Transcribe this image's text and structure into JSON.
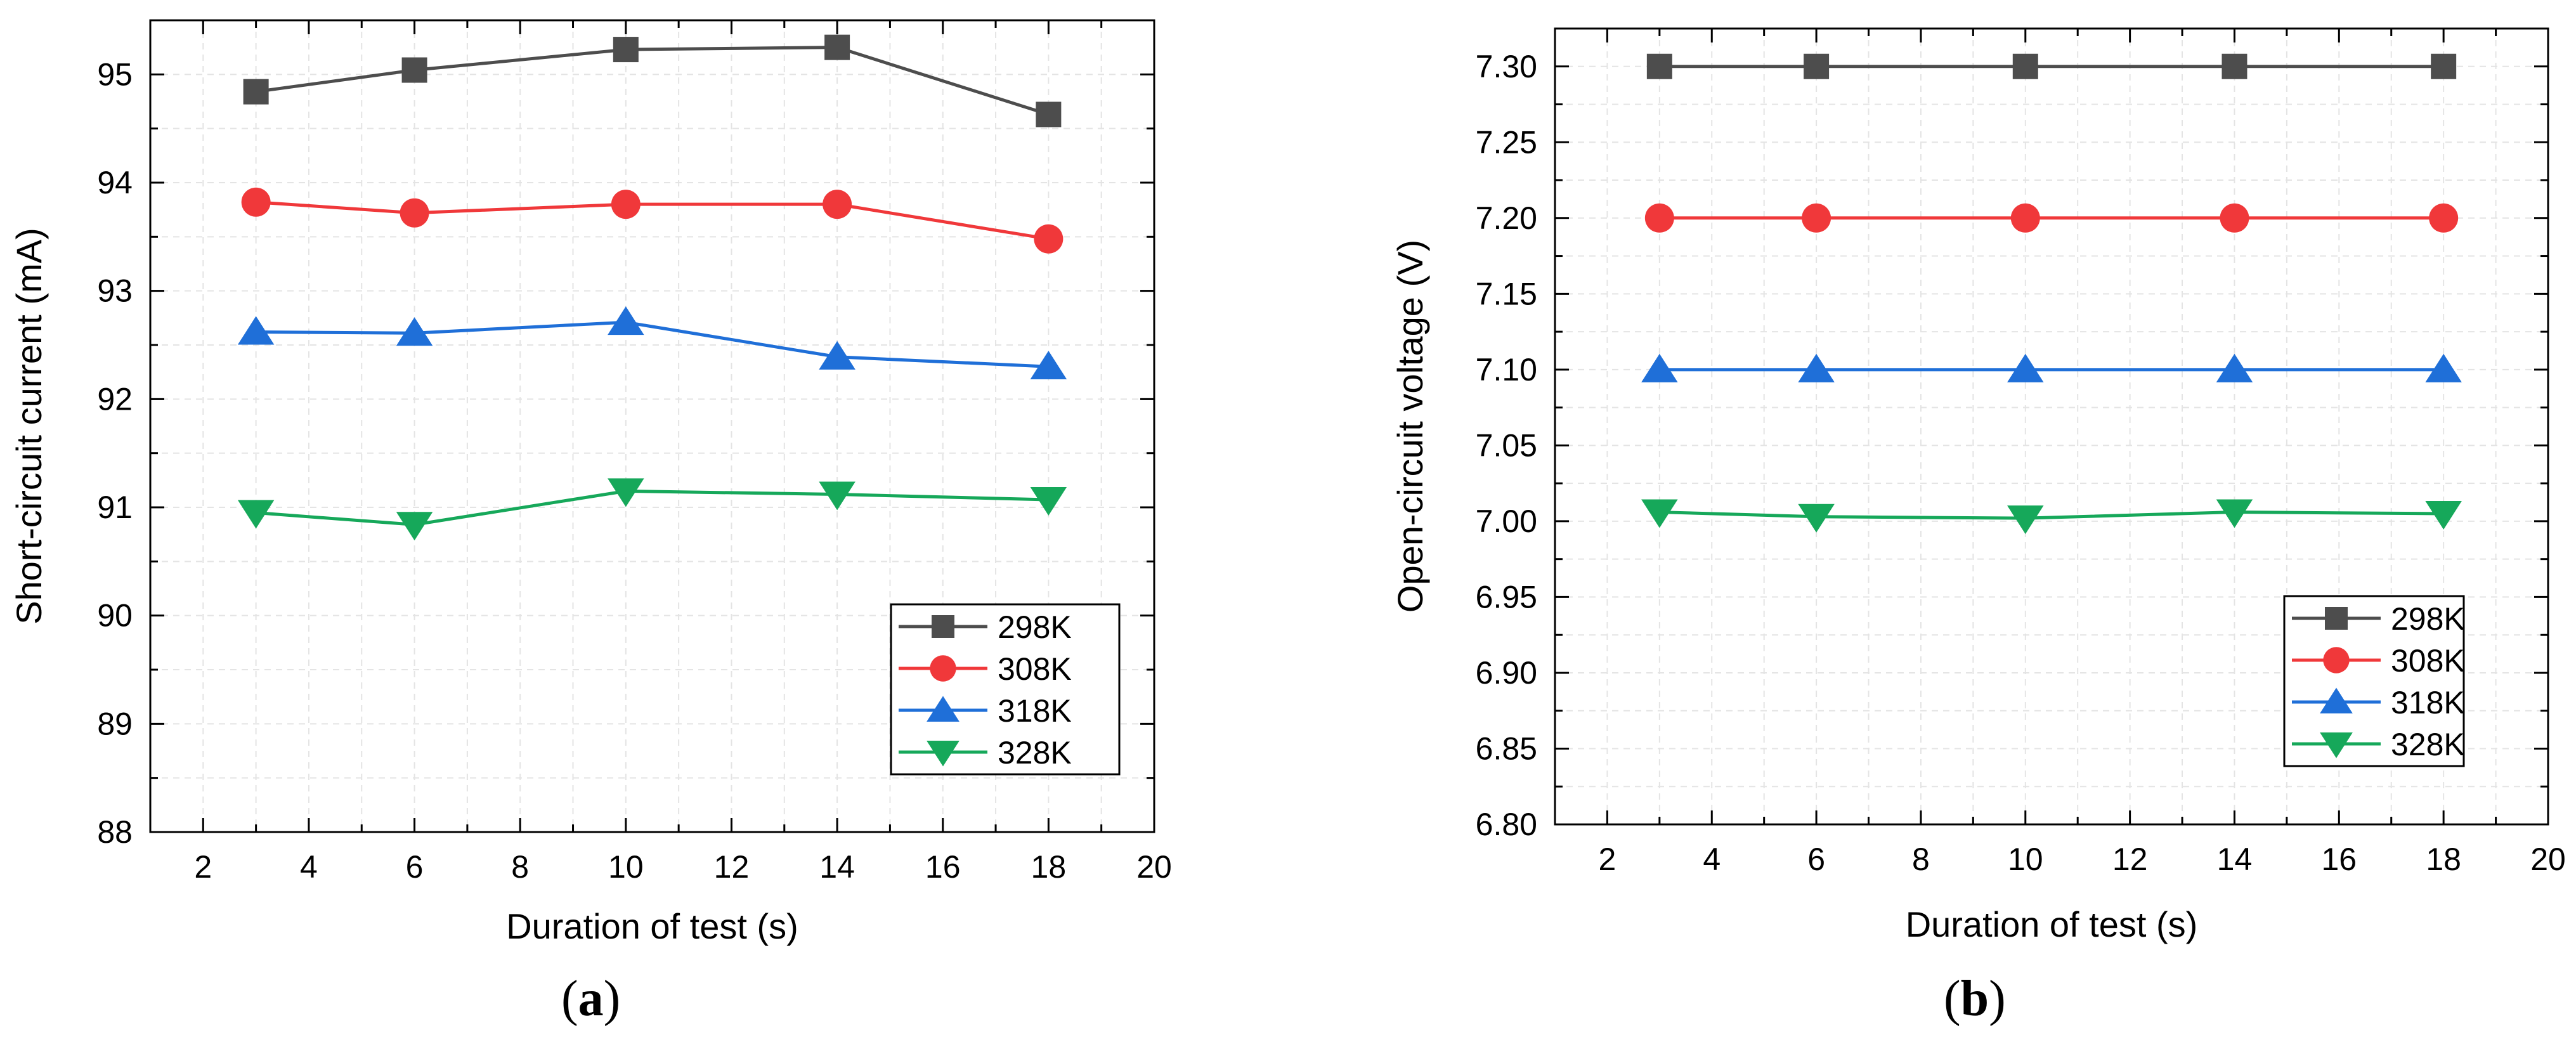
{
  "chart_data": [
    {
      "type": "line",
      "panel_label": "a",
      "caption": {
        "open": "(",
        "letter": "a",
        "close": ")"
      },
      "xlabel": "Duration of test (s)",
      "ylabel": "Short-circuit current (mA)",
      "xlim": [
        1,
        20
      ],
      "ylim": [
        88,
        95.5
      ],
      "xticks": [
        2,
        4,
        6,
        8,
        10,
        12,
        14,
        16,
        18,
        20
      ],
      "yticks": [
        88,
        89,
        90,
        91,
        92,
        93,
        94,
        95
      ],
      "ytick_decimals": 0,
      "grid": true,
      "legend_position": "bottom-right",
      "x": [
        3,
        6,
        10,
        14,
        18
      ],
      "series": [
        {
          "name": "298K",
          "marker": "square",
          "color": "#4d4d4d",
          "values": [
            94.84,
            95.04,
            95.23,
            95.25,
            94.63
          ]
        },
        {
          "name": "308K",
          "marker": "circle",
          "color": "#f0383a",
          "values": [
            93.82,
            93.72,
            93.8,
            93.8,
            93.48
          ]
        },
        {
          "name": "318K",
          "marker": "triangle-up",
          "color": "#1f6fd8",
          "values": [
            92.62,
            92.61,
            92.71,
            92.39,
            92.3
          ]
        },
        {
          "name": "328K",
          "marker": "triangle-down",
          "color": "#16a85a",
          "values": [
            90.95,
            90.84,
            91.15,
            91.12,
            91.07
          ]
        }
      ]
    },
    {
      "type": "line",
      "panel_label": "b",
      "caption": {
        "open": "(",
        "letter": "b",
        "close": ")"
      },
      "xlabel": "Duration of test (s)",
      "ylabel": "Open-circuit voltage (V)",
      "xlim": [
        1,
        20
      ],
      "ylim": [
        6.8,
        7.325
      ],
      "xticks": [
        2,
        4,
        6,
        8,
        10,
        12,
        14,
        16,
        18,
        20
      ],
      "yticks": [
        6.8,
        6.85,
        6.9,
        6.95,
        7.0,
        7.05,
        7.1,
        7.15,
        7.2,
        7.25,
        7.3
      ],
      "ytick_decimals": 2,
      "grid": true,
      "legend_position": "bottom-right",
      "x": [
        3,
        6,
        10,
        14,
        18
      ],
      "series": [
        {
          "name": "298K",
          "marker": "square",
          "color": "#4d4d4d",
          "values": [
            7.3,
            7.3,
            7.3,
            7.3,
            7.3
          ]
        },
        {
          "name": "308K",
          "marker": "circle",
          "color": "#f0383a",
          "values": [
            7.2,
            7.2,
            7.2,
            7.2,
            7.2
          ]
        },
        {
          "name": "318K",
          "marker": "triangle-up",
          "color": "#1f6fd8",
          "values": [
            7.1,
            7.1,
            7.1,
            7.1,
            7.1
          ]
        },
        {
          "name": "328K",
          "marker": "triangle-down",
          "color": "#16a85a",
          "values": [
            7.006,
            7.003,
            7.002,
            7.006,
            7.005
          ]
        }
      ]
    }
  ]
}
